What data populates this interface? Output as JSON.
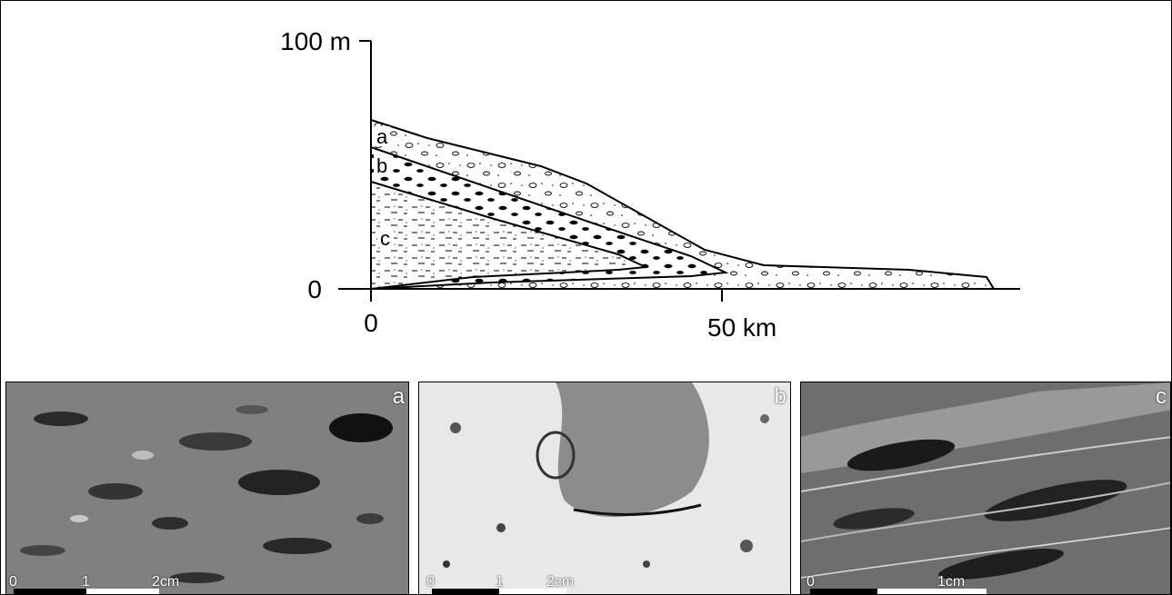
{
  "diagram": {
    "y_axis": {
      "top_label": "100 m",
      "bottom_label": "0"
    },
    "x_axis": {
      "start_label": "0",
      "mid_label": "50 km"
    },
    "layers": [
      {
        "id": "a",
        "label": "a"
      },
      {
        "id": "b",
        "label": "b"
      },
      {
        "id": "c",
        "label": "c"
      }
    ]
  },
  "photos": [
    {
      "letter": "a",
      "scale_labels": [
        "0",
        "1",
        "2cm"
      ],
      "tone": "dark-grey"
    },
    {
      "letter": "b",
      "scale_labels": [
        "0",
        "1",
        "2cm"
      ],
      "tone": "light"
    },
    {
      "letter": "c",
      "scale_labels": [
        "0",
        "1cm"
      ],
      "tone": "dark-streaked"
    }
  ]
}
